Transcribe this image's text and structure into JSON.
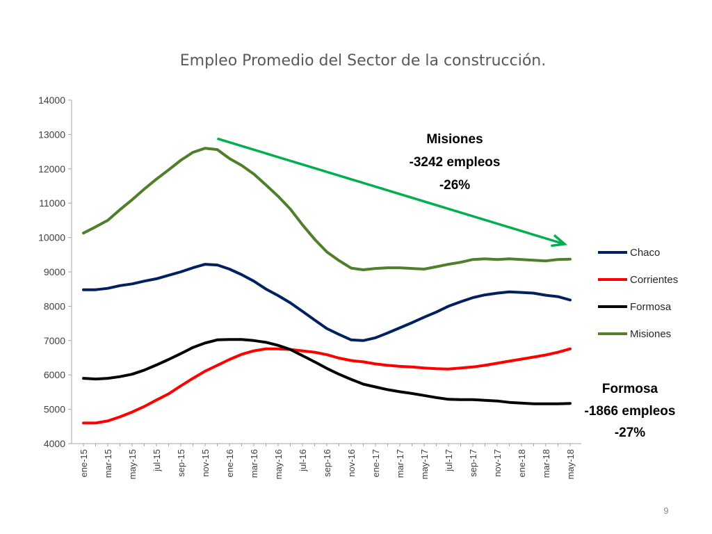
{
  "page_number": "9",
  "chart_data": {
    "type": "line",
    "title": "Empleo Promedio del Sector de la construcción.",
    "xlabel": "",
    "ylabel": "",
    "ylim": [
      4000,
      14000
    ],
    "yticks": [
      "4000",
      "5000",
      "6000",
      "7000",
      "8000",
      "9000",
      "10000",
      "11000",
      "12000",
      "13000",
      "14000"
    ],
    "x": [
      "ene-15",
      "feb-15",
      "mar-15",
      "abr-15",
      "may-15",
      "jun-15",
      "jul-15",
      "ago-15",
      "sep-15",
      "oct-15",
      "nov-15",
      "dic-15",
      "ene-16",
      "feb-16",
      "mar-16",
      "abr-16",
      "may-16",
      "jun-16",
      "jul-16",
      "ago-16",
      "sep-16",
      "oct-16",
      "nov-16",
      "dic-16",
      "ene-17",
      "feb-17",
      "mar-17",
      "abr-17",
      "may-17",
      "jun-17",
      "jul-17",
      "ago-17",
      "sep-17",
      "oct-17",
      "nov-17",
      "dic-17",
      "ene-18",
      "feb-18",
      "mar-18",
      "abr-18",
      "may-18"
    ],
    "xtick_labels": [
      "ene-15",
      "mar-15",
      "may-15",
      "jul-15",
      "sep-15",
      "nov-15",
      "ene-16",
      "mar-16",
      "may-16",
      "jul-16",
      "sep-16",
      "nov-16",
      "ene-17",
      "mar-17",
      "may-17",
      "jul-17",
      "sep-17",
      "nov-17",
      "ene-18",
      "mar-18",
      "may-18"
    ],
    "grid": false,
    "legend_position": "right",
    "series": [
      {
        "name": "Chaco",
        "color": "#002060",
        "values": [
          8480,
          8480,
          8520,
          8600,
          8650,
          8730,
          8800,
          8900,
          9000,
          9120,
          9220,
          9200,
          9080,
          8920,
          8730,
          8500,
          8310,
          8100,
          7850,
          7600,
          7350,
          7180,
          7020,
          7000,
          7080,
          7220,
          7370,
          7520,
          7680,
          7830,
          8000,
          8130,
          8250,
          8330,
          8380,
          8420,
          8400,
          8380,
          8320,
          8280,
          8180
        ]
      },
      {
        "name": "Corrientes",
        "color": "#FF0000",
        "values": [
          4600,
          4600,
          4660,
          4780,
          4920,
          5080,
          5270,
          5450,
          5680,
          5900,
          6110,
          6280,
          6450,
          6600,
          6700,
          6760,
          6760,
          6740,
          6700,
          6660,
          6590,
          6490,
          6420,
          6380,
          6320,
          6280,
          6250,
          6230,
          6200,
          6180,
          6170,
          6200,
          6230,
          6280,
          6340,
          6400,
          6460,
          6520,
          6580,
          6660,
          6760
        ]
      },
      {
        "name": "Formosa",
        "color": "#000000",
        "values": [
          5900,
          5880,
          5900,
          5950,
          6020,
          6140,
          6290,
          6450,
          6620,
          6800,
          6930,
          7020,
          7030,
          7030,
          7000,
          6950,
          6860,
          6740,
          6560,
          6380,
          6190,
          6020,
          5870,
          5730,
          5650,
          5570,
          5510,
          5460,
          5400,
          5340,
          5290,
          5280,
          5280,
          5260,
          5240,
          5200,
          5180,
          5160,
          5160,
          5160,
          5170
        ]
      },
      {
        "name": "Misiones",
        "color": "#4F7F2A",
        "values": [
          10130,
          10310,
          10500,
          10810,
          11100,
          11410,
          11700,
          11970,
          12250,
          12480,
          12600,
          12560,
          12300,
          12100,
          11850,
          11530,
          11200,
          10830,
          10370,
          9950,
          9580,
          9330,
          9110,
          9060,
          9100,
          9120,
          9120,
          9100,
          9080,
          9150,
          9220,
          9280,
          9360,
          9380,
          9360,
          9380,
          9360,
          9340,
          9320,
          9360,
          9370
        ]
      }
    ],
    "annotations": [
      {
        "lines": [
          "Misiones",
          "-3242 empleos",
          "-26%"
        ]
      },
      {
        "lines": [
          "Formosa",
          "-1866 empleos",
          "-27%"
        ]
      }
    ],
    "trend_arrow": {
      "color": "#00B050",
      "from": [
        "dic-15",
        12880
      ],
      "to": [
        "may-18",
        9820
      ]
    }
  }
}
